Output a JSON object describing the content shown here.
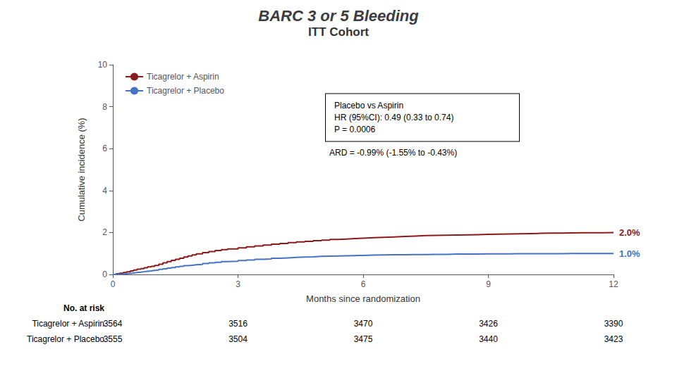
{
  "chart_data": {
    "type": "line",
    "title": "BARC 3 or 5 Bleeding",
    "subtitle": "ITT Cohort",
    "x_label": "Months since randomization",
    "y_label": "Cumulative incidence (%)",
    "xlim": [
      0,
      12
    ],
    "ylim": [
      0,
      10
    ],
    "xticks": [
      0,
      3,
      6,
      9,
      12
    ],
    "yticks": [
      0,
      2,
      4,
      6,
      8,
      10
    ],
    "grid": false,
    "legend": "upper left",
    "x": [
      0,
      0.08,
      0.16,
      0.25,
      0.33,
      0.42,
      0.5,
      0.58,
      0.67,
      0.75,
      0.83,
      0.92,
      1.0,
      1.1,
      1.2,
      1.3,
      1.4,
      1.5,
      1.6,
      1.7,
      1.8,
      1.9,
      2.0,
      2.15,
      2.3,
      2.45,
      2.6,
      2.75,
      3.0,
      3.2,
      3.4,
      3.6,
      3.8,
      4.0,
      4.2,
      4.4,
      4.6,
      4.8,
      5.0,
      5.2,
      5.4,
      5.6,
      5.8,
      6.0,
      6.25,
      6.5,
      6.75,
      7.0,
      7.25,
      7.5,
      7.75,
      8.0,
      8.25,
      8.5,
      8.75,
      9.0,
      9.25,
      9.5,
      9.75,
      10.0,
      10.25,
      10.5,
      10.75,
      11.0,
      11.25,
      11.5,
      11.75,
      12.0
    ],
    "series": [
      {
        "name": "Ticagrelor + Aspirin",
        "color": "#8B1A1A",
        "end_label": "2.0%",
        "values": [
          0,
          0.03,
          0.06,
          0.09,
          0.13,
          0.17,
          0.21,
          0.25,
          0.28,
          0.32,
          0.36,
          0.39,
          0.43,
          0.49,
          0.55,
          0.61,
          0.67,
          0.72,
          0.77,
          0.83,
          0.88,
          0.93,
          0.98,
          1.04,
          1.09,
          1.14,
          1.18,
          1.22,
          1.27,
          1.32,
          1.36,
          1.4,
          1.44,
          1.48,
          1.52,
          1.55,
          1.58,
          1.61,
          1.64,
          1.67,
          1.69,
          1.71,
          1.73,
          1.75,
          1.77,
          1.79,
          1.81,
          1.83,
          1.85,
          1.86,
          1.87,
          1.88,
          1.89,
          1.9,
          1.91,
          1.92,
          1.93,
          1.94,
          1.95,
          1.96,
          1.97,
          1.97,
          1.98,
          1.99,
          1.99,
          1.99,
          2.0,
          2.0
        ]
      },
      {
        "name": "Ticagrelor + Placebo",
        "color": "#4472C4",
        "end_label": "1.0%",
        "values": [
          0,
          0.01,
          0.02,
          0.03,
          0.05,
          0.07,
          0.09,
          0.11,
          0.13,
          0.15,
          0.17,
          0.19,
          0.21,
          0.24,
          0.27,
          0.3,
          0.33,
          0.36,
          0.39,
          0.42,
          0.44,
          0.46,
          0.48,
          0.52,
          0.55,
          0.58,
          0.61,
          0.63,
          0.66,
          0.69,
          0.72,
          0.74,
          0.77,
          0.79,
          0.81,
          0.83,
          0.84,
          0.86,
          0.87,
          0.88,
          0.89,
          0.9,
          0.91,
          0.92,
          0.93,
          0.94,
          0.94,
          0.95,
          0.95,
          0.96,
          0.96,
          0.97,
          0.97,
          0.97,
          0.98,
          0.98,
          0.98,
          0.99,
          0.99,
          0.99,
          0.99,
          0.99,
          1.0,
          1.0,
          1.0,
          1.0,
          1.0,
          1.0
        ]
      }
    ],
    "box_text": [
      "Placebo vs Aspirin",
      "HR (95%CI): 0.49 (0.33 to 0.74)",
      "P = 0.0006"
    ],
    "annotations": [
      "ARD = -0.99% (-1.55% to -0.43%)"
    ],
    "risk_table": {
      "title": "No. at risk",
      "x": [
        0,
        3,
        6,
        9,
        12
      ],
      "rows": [
        {
          "name": "Ticagrelor + Aspirin",
          "values": [
            3564,
            3516,
            3470,
            3426,
            3390
          ]
        },
        {
          "name": "Ticagrelor + Placebo",
          "values": [
            3555,
            3504,
            3475,
            3440,
            3423
          ]
        }
      ]
    }
  }
}
